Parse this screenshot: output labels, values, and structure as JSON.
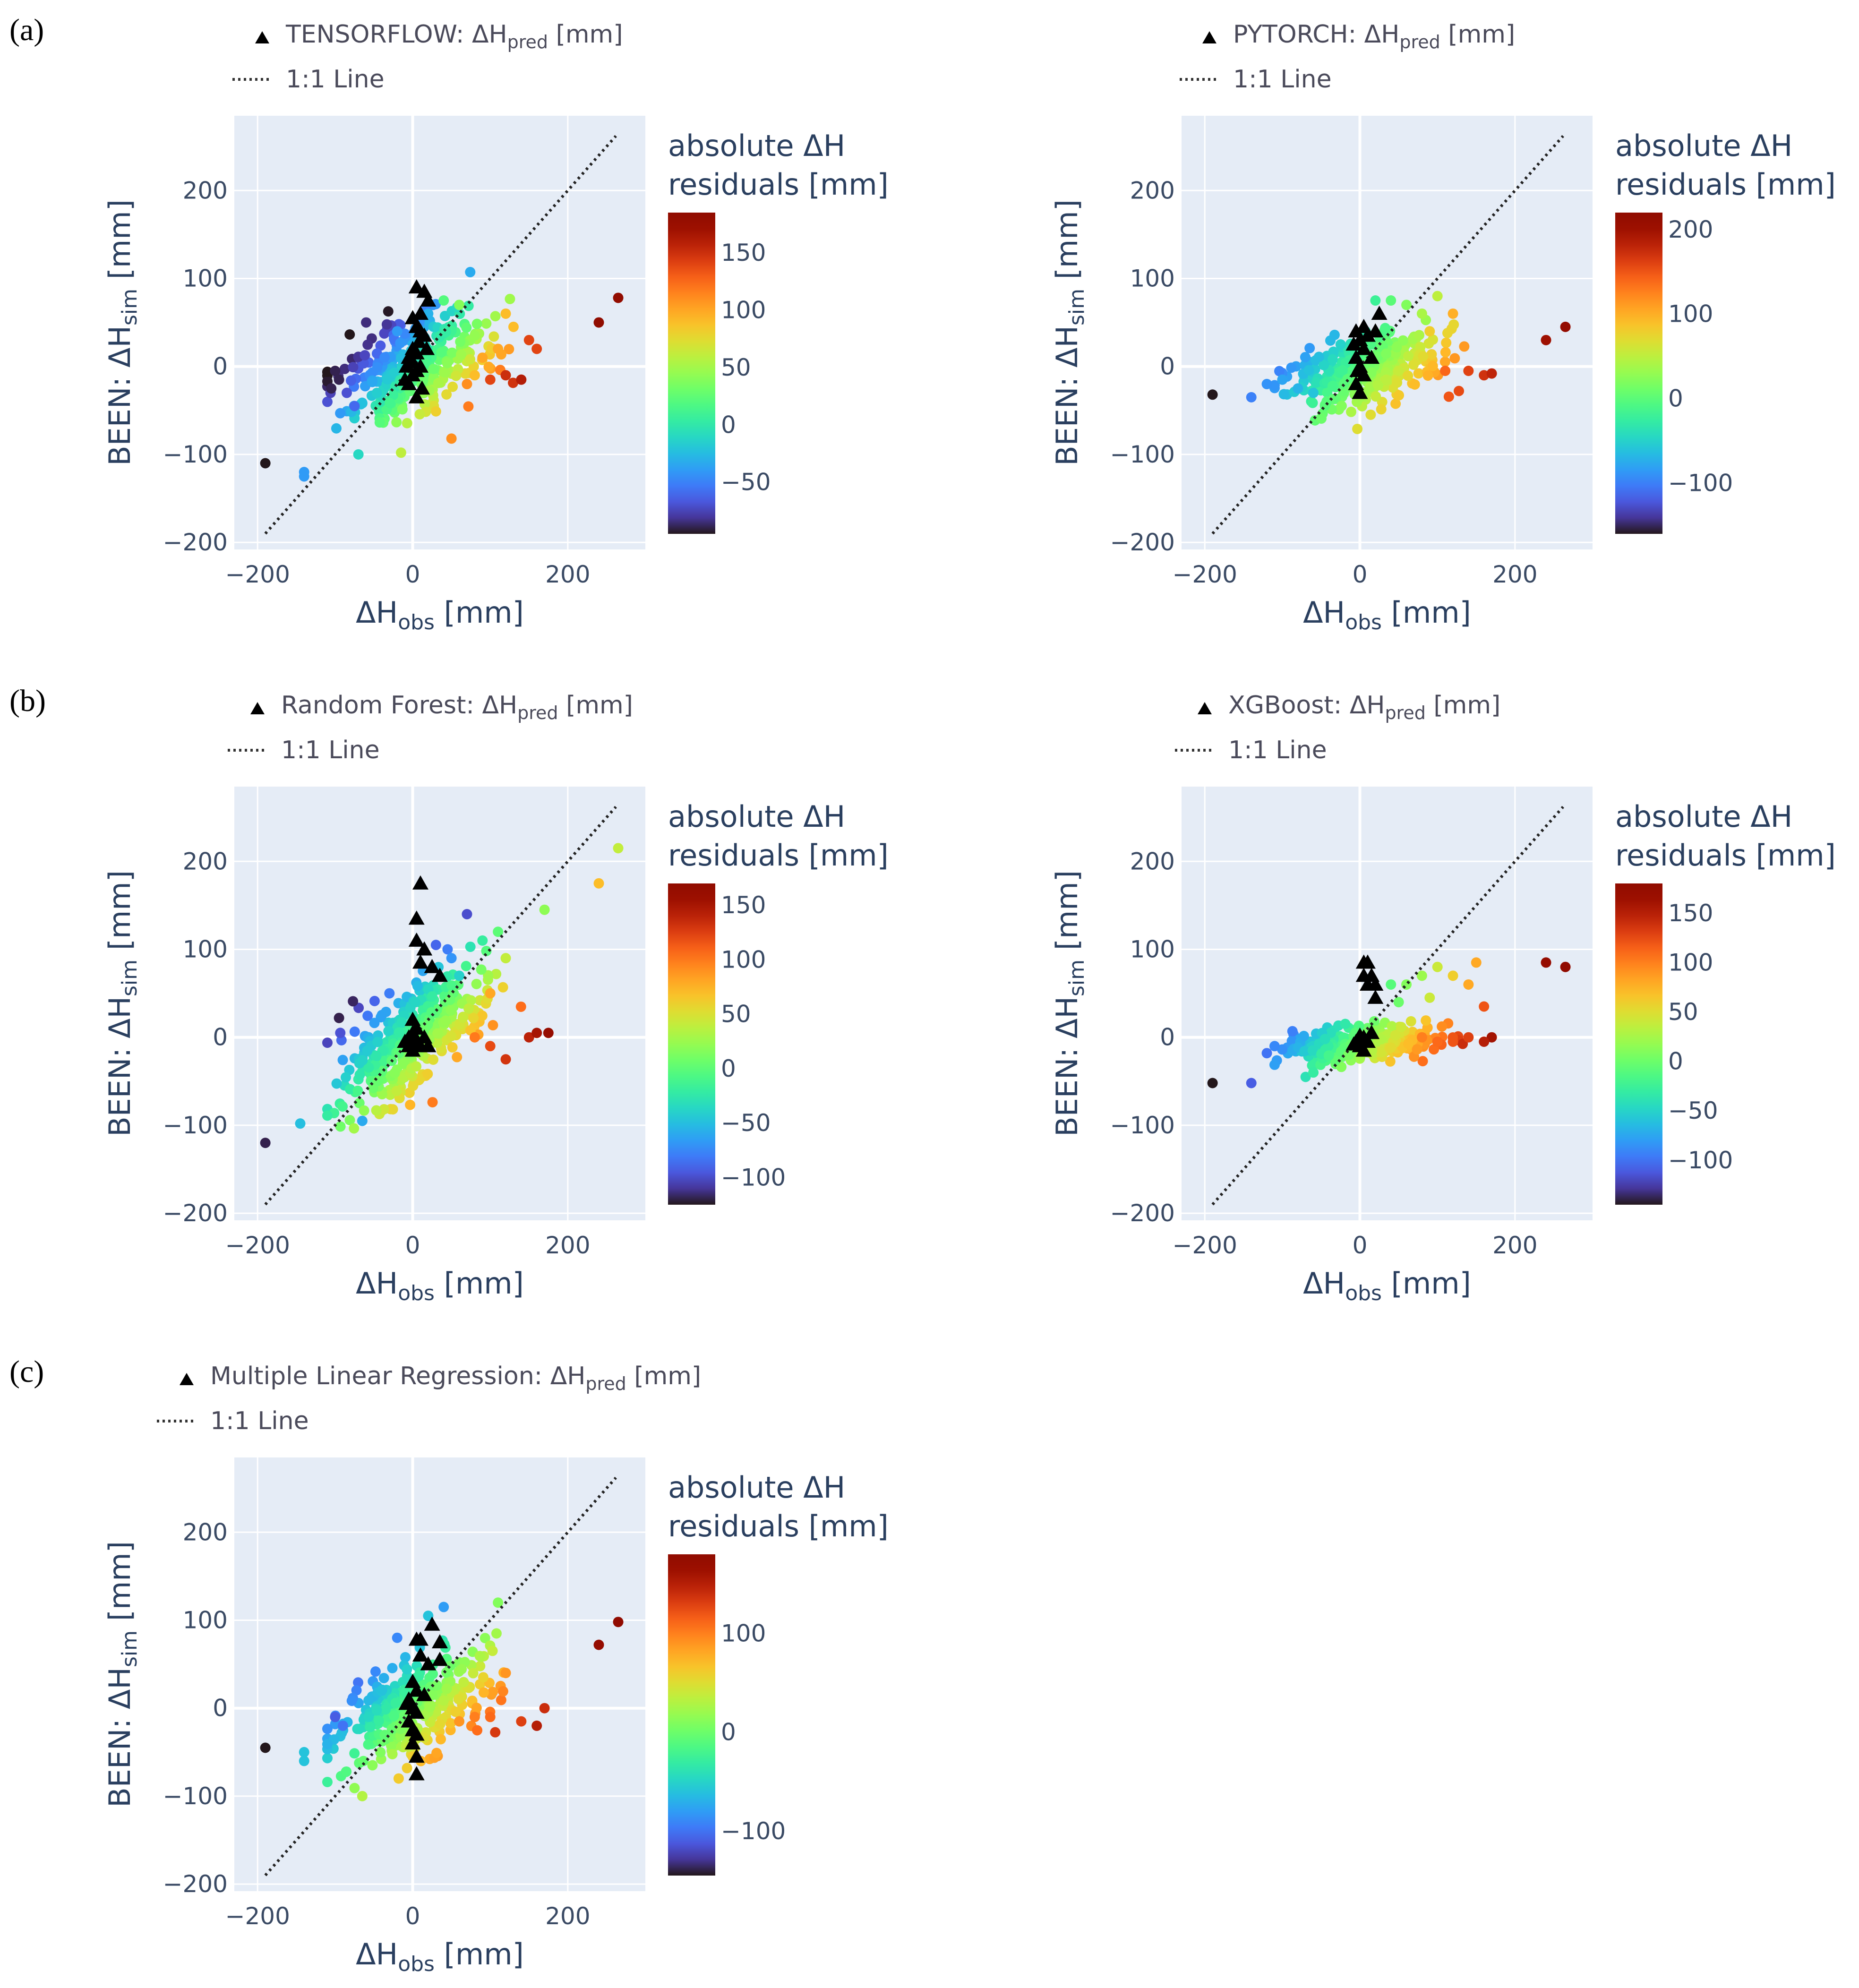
{
  "figure": {
    "panel_labels": [
      "(a)",
      "(b)",
      "(c)"
    ]
  },
  "chart_data": [
    {
      "id": "tensorflow",
      "panel": "(a)",
      "type": "scatter",
      "legend": [
        {
          "symbol": "triangle-up",
          "prefix": "TENSORFLOW: ΔH",
          "sub": "pred",
          "suffix": " [mm]"
        },
        {
          "symbol": "dotted-line",
          "text": "1:1 Line"
        }
      ],
      "xlabel": {
        "base": "ΔH",
        "sub": "obs",
        "suffix": " [mm]"
      },
      "ylabel": {
        "prefix": "BEEN: ΔH",
        "sub": "sim",
        "suffix": " [mm]"
      },
      "xlim": [
        -230,
        300
      ],
      "ylim": [
        -208,
        285
      ],
      "xticks": [
        -200,
        0,
        200
      ],
      "yticks": [
        -200,
        -100,
        0,
        100,
        200
      ],
      "grid": true,
      "colorbar": {
        "title": [
          "absolute ΔH",
          "residuals [mm]"
        ],
        "range": [
          -95,
          185
        ],
        "ticks": [
          -50,
          0,
          50,
          100,
          150
        ],
        "colorscale": "turbo"
      },
      "cloud_seed": 11,
      "cloud_y_slope": 0.35,
      "cloud_y_noise": 28,
      "cloud_y_shift": 0,
      "triangles": [
        [
          5,
          -35
        ],
        [
          -5,
          -20
        ],
        [
          0,
          -10
        ],
        [
          5,
          -5
        ],
        [
          -8,
          0
        ],
        [
          0,
          5
        ],
        [
          10,
          0
        ],
        [
          5,
          15
        ],
        [
          -5,
          10
        ],
        [
          0,
          20
        ],
        [
          8,
          28
        ],
        [
          15,
          35
        ],
        [
          5,
          45
        ],
        [
          0,
          55
        ],
        [
          10,
          60
        ],
        [
          5,
          90
        ],
        [
          15,
          85
        ],
        [
          20,
          75
        ],
        [
          10,
          40
        ],
        [
          -10,
          -15
        ],
        [
          18,
          20
        ],
        [
          12,
          -25
        ]
      ],
      "points": [
        [
          -190,
          -110
        ],
        [
          -140,
          -120
        ],
        [
          -140,
          -125
        ],
        [
          -100,
          -5
        ],
        [
          -105,
          -25
        ],
        [
          -95,
          -15
        ],
        [
          -85,
          -30
        ],
        [
          -75,
          -45
        ],
        [
          -60,
          50
        ],
        [
          -70,
          -100
        ],
        [
          -15,
          -98
        ],
        [
          50,
          -82
        ],
        [
          70,
          -20
        ],
        [
          100,
          -15
        ],
        [
          120,
          -10
        ],
        [
          140,
          -15
        ],
        [
          160,
          20
        ],
        [
          150,
          30
        ],
        [
          240,
          50
        ],
        [
          265,
          78
        ],
        [
          80,
          -10
        ],
        [
          90,
          10
        ],
        [
          110,
          20
        ],
        [
          130,
          45
        ],
        [
          120,
          60
        ],
        [
          60,
          70
        ],
        [
          40,
          75
        ],
        [
          20,
          60
        ],
        [
          -20,
          40
        ]
      ],
      "point_colors": [
        -95,
        -40,
        -40,
        -90,
        -90,
        -90,
        -70,
        -60,
        -85,
        -10,
        60,
        110,
        110,
        140,
        150,
        160,
        140,
        140,
        185,
        180,
        90,
        100,
        100,
        90,
        90,
        40,
        20,
        -30,
        -40
      ]
    },
    {
      "id": "pytorch",
      "panel": "(a)",
      "type": "scatter",
      "legend": [
        {
          "symbol": "triangle-up",
          "prefix": "PYTORCH: ΔH",
          "sub": "pred",
          "suffix": " [mm]"
        },
        {
          "symbol": "dotted-line",
          "text": "1:1 Line"
        }
      ],
      "xlabel": {
        "base": "ΔH",
        "sub": "obs",
        "suffix": " [mm]"
      },
      "ylabel": {
        "prefix": "BEEN: ΔH",
        "sub": "sim",
        "suffix": " [mm]"
      },
      "xlim": [
        -230,
        300
      ],
      "ylim": [
        -208,
        285
      ],
      "xticks": [
        -200,
        0,
        200
      ],
      "yticks": [
        -200,
        -100,
        0,
        100,
        200
      ],
      "grid": true,
      "colorbar": {
        "title": [
          "absolute ΔH",
          "residuals [mm]"
        ],
        "range": [
          -160,
          220
        ],
        "ticks": [
          -100,
          0,
          100,
          200
        ],
        "colorscale": "turbo"
      },
      "cloud_seed": 23,
      "cloud_y_slope": 0.18,
      "cloud_y_noise": 18,
      "cloud_y_shift": -5,
      "triangles": [
        [
          0,
          -30
        ],
        [
          -5,
          -20
        ],
        [
          5,
          -10
        ],
        [
          0,
          0
        ],
        [
          -5,
          10
        ],
        [
          5,
          20
        ],
        [
          0,
          30
        ],
        [
          -5,
          40
        ],
        [
          5,
          45
        ],
        [
          10,
          35
        ],
        [
          -8,
          25
        ],
        [
          25,
          60
        ],
        [
          20,
          40
        ],
        [
          15,
          10
        ],
        [
          -3,
          -5
        ]
      ],
      "points": [
        [
          -190,
          -32
        ],
        [
          -140,
          -35
        ],
        [
          -120,
          -20
        ],
        [
          -100,
          -15
        ],
        [
          -80,
          -25
        ],
        [
          -60,
          -30
        ],
        [
          240,
          30
        ],
        [
          265,
          45
        ],
        [
          160,
          -10
        ],
        [
          170,
          -8
        ],
        [
          140,
          -5
        ],
        [
          110,
          -5
        ],
        [
          120,
          60
        ],
        [
          100,
          80
        ],
        [
          80,
          60
        ],
        [
          60,
          70
        ],
        [
          40,
          75
        ],
        [
          20,
          75
        ],
        [
          90,
          40
        ]
      ],
      "point_colors": [
        -160,
        -100,
        -90,
        -80,
        -70,
        -60,
        200,
        210,
        170,
        180,
        160,
        140,
        100,
        50,
        40,
        20,
        0,
        -20,
        80
      ]
    },
    {
      "id": "randomforest",
      "panel": "(b)",
      "type": "scatter",
      "legend": [
        {
          "symbol": "triangle-up",
          "prefix": "Random Forest: ΔH",
          "sub": "pred",
          "suffix": " [mm]"
        },
        {
          "symbol": "dotted-line",
          "text": "1:1 Line"
        }
      ],
      "xlabel": {
        "base": "ΔH",
        "sub": "obs",
        "suffix": " [mm]"
      },
      "ylabel": {
        "prefix": "BEEN: ΔH",
        "sub": "sim",
        "suffix": " [mm]"
      },
      "xlim": [
        -230,
        300
      ],
      "ylim": [
        -208,
        285
      ],
      "xticks": [
        -200,
        0,
        200
      ],
      "yticks": [
        -200,
        -100,
        0,
        100,
        200
      ],
      "grid": true,
      "colorbar": {
        "title": [
          "absolute ΔH",
          "residuals [mm]"
        ],
        "range": [
          -125,
          170
        ],
        "ticks": [
          -100,
          -50,
          0,
          50,
          100,
          150
        ],
        "colorscale": "turbo"
      },
      "cloud_seed": 37,
      "cloud_y_slope": 0.55,
      "cloud_y_noise": 30,
      "cloud_y_shift": 0,
      "triangles": [
        [
          10,
          175
        ],
        [
          5,
          135
        ],
        [
          5,
          110
        ],
        [
          15,
          100
        ],
        [
          10,
          85
        ],
        [
          25,
          80
        ],
        [
          35,
          70
        ],
        [
          0,
          20
        ],
        [
          5,
          10
        ],
        [
          -5,
          0
        ],
        [
          5,
          -5
        ],
        [
          -5,
          -10
        ],
        [
          0,
          -15
        ],
        [
          10,
          -10
        ],
        [
          0,
          5
        ],
        [
          15,
          0
        ],
        [
          -10,
          -5
        ],
        [
          20,
          -10
        ]
      ],
      "points": [
        [
          -190,
          -120
        ],
        [
          -145,
          -98
        ],
        [
          -95,
          22
        ],
        [
          -65,
          -95
        ],
        [
          70,
          140
        ],
        [
          30,
          105
        ],
        [
          45,
          100
        ],
        [
          90,
          110
        ],
        [
          110,
          120
        ],
        [
          170,
          145
        ],
        [
          265,
          215
        ],
        [
          240,
          175
        ],
        [
          150,
          0
        ],
        [
          160,
          5
        ],
        [
          175,
          5
        ],
        [
          120,
          -25
        ],
        [
          100,
          -10
        ],
        [
          80,
          0
        ],
        [
          100,
          50
        ],
        [
          120,
          90
        ],
        [
          50,
          90
        ],
        [
          60,
          70
        ],
        [
          -30,
          50
        ]
      ],
      "point_colors": [
        -120,
        -50,
        -120,
        -60,
        -100,
        -90,
        -80,
        -20,
        0,
        20,
        40,
        70,
        140,
        150,
        160,
        130,
        120,
        100,
        80,
        40,
        -70,
        -40,
        -80
      ]
    },
    {
      "id": "xgboost",
      "panel": "(b)",
      "type": "scatter",
      "legend": [
        {
          "symbol": "triangle-up",
          "prefix": "XGBoost: ΔH",
          "sub": "pred",
          "suffix": " [mm]"
        },
        {
          "symbol": "dotted-line",
          "text": "1:1 Line"
        }
      ],
      "xlabel": {
        "base": "ΔH",
        "sub": "obs",
        "suffix": " [mm]"
      },
      "ylabel": {
        "prefix": "BEEN: ΔH",
        "sub": "sim",
        "suffix": " [mm]"
      },
      "xlim": [
        -230,
        300
      ],
      "ylim": [
        -208,
        285
      ],
      "xticks": [
        -200,
        0,
        200
      ],
      "yticks": [
        -200,
        -100,
        0,
        100,
        200
      ],
      "grid": true,
      "colorbar": {
        "title": [
          "absolute ΔH",
          "residuals [mm]"
        ],
        "range": [
          -145,
          180
        ],
        "ticks": [
          -100,
          -50,
          0,
          50,
          100,
          150
        ],
        "colorscale": "turbo"
      },
      "cloud_seed": 53,
      "cloud_y_slope": 0.08,
      "cloud_y_noise": 9,
      "cloud_y_shift": -8,
      "triangles": [
        [
          5,
          85
        ],
        [
          10,
          85
        ],
        [
          5,
          70
        ],
        [
          15,
          70
        ],
        [
          10,
          60
        ],
        [
          20,
          60
        ],
        [
          20,
          45
        ],
        [
          5,
          0
        ],
        [
          -5,
          -5
        ],
        [
          0,
          -10
        ],
        [
          5,
          -15
        ],
        [
          10,
          -5
        ],
        [
          -8,
          -8
        ],
        [
          15,
          5
        ],
        [
          0,
          2
        ]
      ],
      "points": [
        [
          -190,
          -52
        ],
        [
          -140,
          -52
        ],
        [
          -120,
          -18
        ],
        [
          -110,
          -10
        ],
        [
          -70,
          -45
        ],
        [
          -60,
          -40
        ],
        [
          240,
          85
        ],
        [
          265,
          80
        ],
        [
          150,
          85
        ],
        [
          140,
          60
        ],
        [
          120,
          70
        ],
        [
          100,
          80
        ],
        [
          80,
          70
        ],
        [
          60,
          60
        ],
        [
          40,
          60
        ],
        [
          170,
          0
        ],
        [
          160,
          -5
        ],
        [
          140,
          0
        ],
        [
          120,
          -5
        ],
        [
          100,
          -5
        ],
        [
          80,
          0
        ],
        [
          90,
          45
        ],
        [
          50,
          40
        ],
        [
          160,
          35
        ]
      ],
      "point_colors": [
        -145,
        -110,
        -100,
        -90,
        -40,
        -30,
        170,
        175,
        80,
        80,
        60,
        40,
        20,
        10,
        -10,
        160,
        150,
        130,
        120,
        110,
        100,
        40,
        0,
        120
      ]
    },
    {
      "id": "mlr",
      "panel": "(c)",
      "type": "scatter",
      "legend": [
        {
          "symbol": "triangle-up",
          "prefix": "Multiple Linear Regression: ΔH",
          "sub": "pred",
          "suffix": " [mm]"
        },
        {
          "symbol": "dotted-line",
          "text": "1:1 Line"
        }
      ],
      "xlabel": {
        "base": "ΔH",
        "sub": "obs",
        "suffix": " [mm]"
      },
      "ylabel": {
        "prefix": "BEEN: ΔH",
        "sub": "sim",
        "suffix": " [mm]"
      },
      "xlim": [
        -230,
        300
      ],
      "ylim": [
        -208,
        285
      ],
      "xticks": [
        -200,
        0,
        200
      ],
      "yticks": [
        -200,
        -100,
        0,
        100,
        200
      ],
      "grid": true,
      "colorbar": {
        "title": [
          "absolute ΔH",
          "residuals [mm]"
        ],
        "range": [
          -145,
          180
        ],
        "ticks": [
          -100,
          0,
          100
        ],
        "colorscale": "turbo"
      },
      "cloud_seed": 71,
      "cloud_y_slope": 0.35,
      "cloud_y_noise": 26,
      "cloud_y_shift": 0,
      "triangles": [
        [
          5,
          78
        ],
        [
          10,
          78
        ],
        [
          25,
          95
        ],
        [
          35,
          75
        ],
        [
          10,
          60
        ],
        [
          20,
          50
        ],
        [
          35,
          55
        ],
        [
          0,
          30
        ],
        [
          5,
          20
        ],
        [
          -5,
          10
        ],
        [
          0,
          0
        ],
        [
          5,
          -5
        ],
        [
          -5,
          -15
        ],
        [
          0,
          -25
        ],
        [
          5,
          -30
        ],
        [
          0,
          -40
        ],
        [
          5,
          -55
        ],
        [
          5,
          -75
        ],
        [
          -8,
          5
        ],
        [
          15,
          15
        ]
      ],
      "points": [
        [
          -190,
          -45
        ],
        [
          -140,
          -50
        ],
        [
          -140,
          -60
        ],
        [
          -100,
          -10
        ],
        [
          -90,
          -20
        ],
        [
          -65,
          -100
        ],
        [
          240,
          72
        ],
        [
          265,
          98
        ],
        [
          170,
          0
        ],
        [
          160,
          -20
        ],
        [
          140,
          -15
        ],
        [
          120,
          40
        ],
        [
          110,
          120
        ],
        [
          40,
          115
        ],
        [
          20,
          105
        ],
        [
          0,
          -55
        ],
        [
          100,
          -10
        ],
        [
          80,
          -10
        ],
        [
          60,
          -15
        ],
        [
          -20,
          80
        ]
      ],
      "point_colors": [
        -145,
        -60,
        -60,
        -110,
        -100,
        30,
        170,
        175,
        140,
        150,
        130,
        90,
        10,
        -80,
        -60,
        60,
        110,
        100,
        90,
        -90
      ]
    }
  ]
}
